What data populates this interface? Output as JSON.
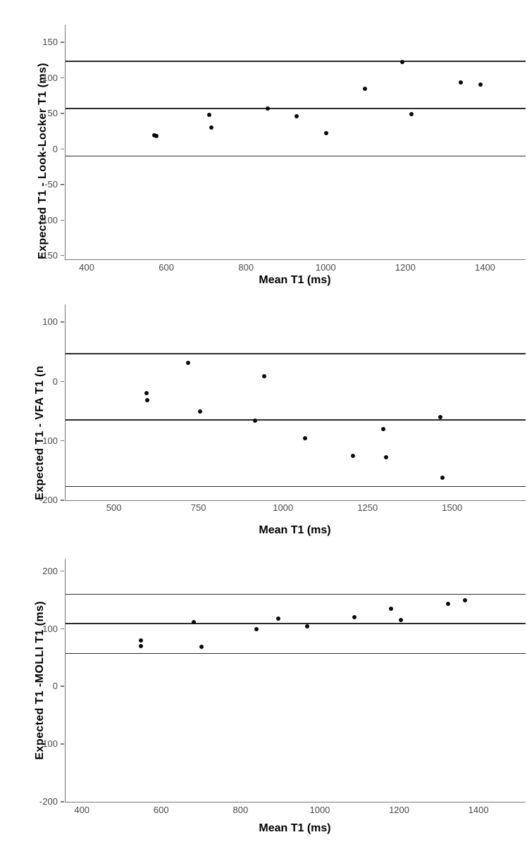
{
  "colors": {
    "background": "#ffffff",
    "point": "#0a0a0a",
    "reference_line": "#2b2b2b",
    "axis": "#787878",
    "tick_label": "#4a4a4a",
    "axis_label": "#000000"
  },
  "chart_data": [
    {
      "type": "scatter",
      "name": "bland-altman-look-locker",
      "title": "",
      "xlabel": "Mean T1 (ms)",
      "ylabel": "Expected T1 - Look-Locker T1 (ms)",
      "xlim": [
        345,
        1500
      ],
      "ylim": [
        -155,
        175
      ],
      "xticks": [
        400,
        600,
        800,
        1000,
        1200,
        1400
      ],
      "yticks": [
        150,
        100,
        50,
        0,
        -50,
        -100,
        -150
      ],
      "grid": false,
      "legend": "none",
      "reference_lines": {
        "upper_loa": 123,
        "mean_bias": 57,
        "lower_loa": -10
      },
      "points": [
        [
          568,
          19
        ],
        [
          574,
          18
        ],
        [
          706,
          48
        ],
        [
          712,
          30
        ],
        [
          853,
          57
        ],
        [
          926,
          46
        ],
        [
          999,
          22
        ],
        [
          1097,
          85
        ],
        [
          1191,
          122
        ],
        [
          1213,
          49
        ],
        [
          1337,
          94
        ],
        [
          1386,
          91
        ]
      ]
    },
    {
      "type": "scatter",
      "name": "bland-altman-vfa",
      "title": "",
      "xlabel": "Mean T1 (ms)",
      "ylabel": "Expected T1 - VFA T1 (n",
      "xlim": [
        355,
        1715
      ],
      "ylim": [
        -200,
        130
      ],
      "xticks": [
        500,
        750,
        1000,
        1250,
        1500
      ],
      "yticks": [
        100,
        0,
        -100,
        -200
      ],
      "grid": false,
      "legend": "none",
      "reference_lines": {
        "upper_loa": 47,
        "mean_bias": -65,
        "lower_loa": -177
      },
      "points": [
        [
          594,
          -19
        ],
        [
          597,
          -32
        ],
        [
          717,
          31
        ],
        [
          753,
          -51
        ],
        [
          915,
          -66
        ],
        [
          943,
          9
        ],
        [
          1063,
          -96
        ],
        [
          1205,
          -125
        ],
        [
          1295,
          -80
        ],
        [
          1303,
          -128
        ],
        [
          1462,
          -60
        ],
        [
          1469,
          -162
        ]
      ]
    },
    {
      "type": "scatter",
      "name": "bland-altman-molli",
      "title": "",
      "xlabel": "Mean T1 (ms)",
      "ylabel": "Expected T1 -MOLLI T1 (ms)",
      "xlim": [
        357,
        1517
      ],
      "ylim": [
        -200,
        222
      ],
      "xticks": [
        400,
        600,
        800,
        1000,
        1200,
        1400
      ],
      "yticks": [
        200,
        100,
        0,
        -100,
        -200
      ],
      "grid": false,
      "legend": "none",
      "reference_lines": {
        "upper_loa": 160,
        "mean_bias": 109,
        "lower_loa": 57
      },
      "points": [
        [
          547,
          80
        ],
        [
          547,
          70
        ],
        [
          681,
          112
        ],
        [
          699,
          69
        ],
        [
          838,
          100
        ],
        [
          894,
          118
        ],
        [
          967,
          104
        ],
        [
          1085,
          121
        ],
        [
          1177,
          135
        ],
        [
          1202,
          116
        ],
        [
          1321,
          144
        ],
        [
          1365,
          150
        ]
      ]
    }
  ]
}
